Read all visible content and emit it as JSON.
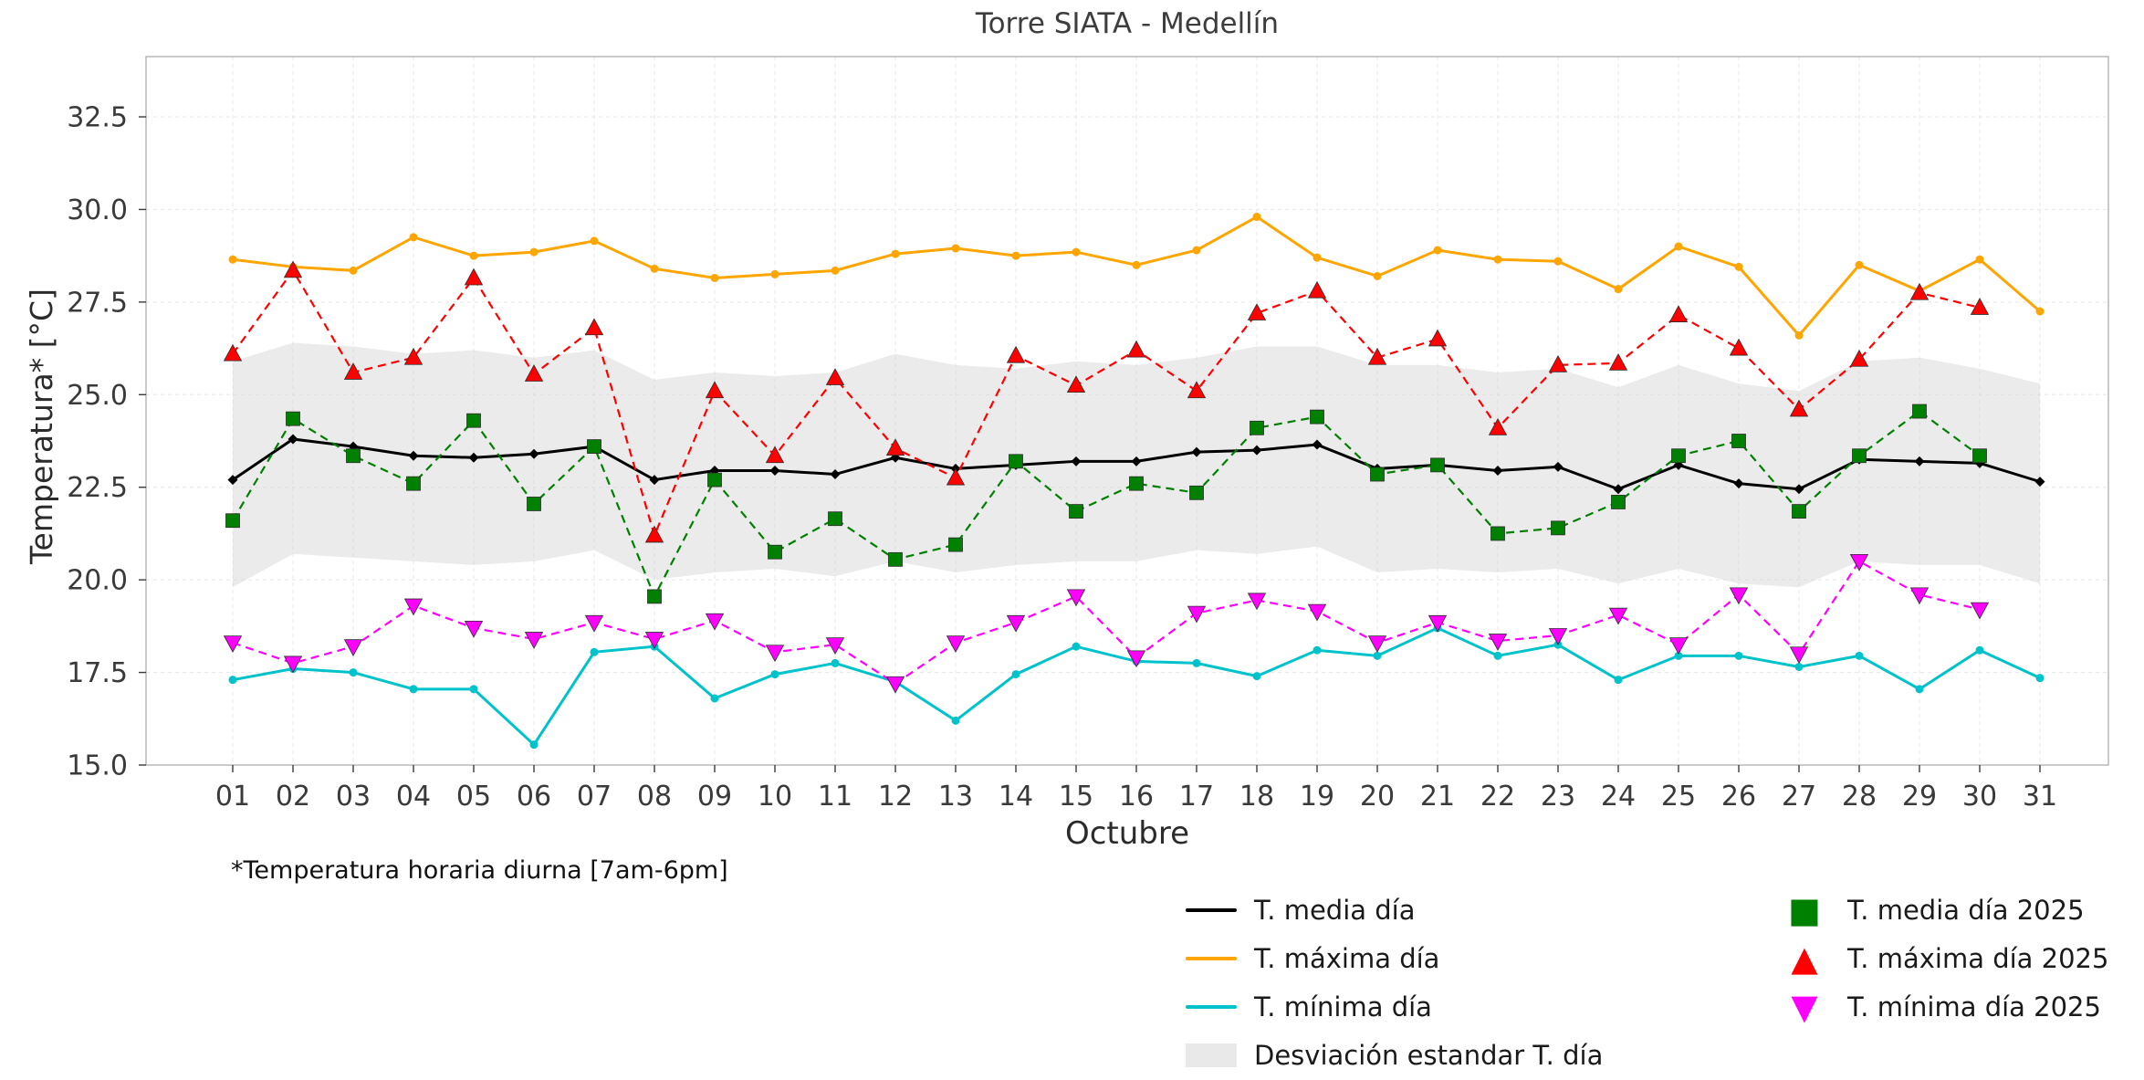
{
  "figure": {
    "footnote": "*Temperatura horaria diurna [7am-6pm]"
  },
  "chart_data": {
    "type": "line",
    "title": "Torre SIATA - Medellín",
    "xlabel": "Octubre",
    "ylabel": "Temperatura* [°C]",
    "grid": true,
    "legend_position": "below-right, two columns",
    "ylim": [
      15.0,
      34.1
    ],
    "y_ticks": [
      15.0,
      17.5,
      20.0,
      22.5,
      25.0,
      27.5,
      30.0,
      32.5
    ],
    "x_tick_labels": [
      "01",
      "02",
      "03",
      "04",
      "05",
      "06",
      "07",
      "08",
      "09",
      "10",
      "11",
      "12",
      "13",
      "14",
      "15",
      "16",
      "17",
      "18",
      "19",
      "20",
      "21",
      "22",
      "23",
      "24",
      "25",
      "26",
      "27",
      "28",
      "29",
      "30",
      "31"
    ],
    "band": {
      "name": "Desviación estandar T. día",
      "color": "#d3d3d3",
      "upper": [
        25.9,
        26.4,
        26.3,
        26.1,
        26.2,
        26.0,
        26.2,
        25.4,
        25.6,
        25.5,
        25.6,
        26.1,
        25.8,
        25.7,
        25.9,
        25.8,
        26.0,
        26.3,
        26.3,
        25.8,
        25.8,
        25.6,
        25.7,
        25.2,
        25.8,
        25.3,
        25.1,
        25.9,
        26.0,
        25.7,
        25.3
      ],
      "lower": [
        19.8,
        20.7,
        20.6,
        20.5,
        20.4,
        20.5,
        20.8,
        20.0,
        20.2,
        20.3,
        20.1,
        20.5,
        20.2,
        20.4,
        20.5,
        20.5,
        20.8,
        20.7,
        20.9,
        20.2,
        20.3,
        20.2,
        20.3,
        19.9,
        20.3,
        19.9,
        19.8,
        20.5,
        20.4,
        20.4,
        19.9
      ]
    },
    "series": [
      {
        "name": "T. media día",
        "color": "#000000",
        "linestyle": "solid",
        "marker": "diamond",
        "values": [
          22.7,
          23.8,
          23.6,
          23.35,
          23.3,
          23.4,
          23.6,
          22.7,
          22.95,
          22.95,
          22.85,
          23.3,
          23.0,
          23.1,
          23.2,
          23.2,
          23.45,
          23.5,
          23.65,
          23.0,
          23.1,
          22.95,
          23.05,
          22.45,
          23.1,
          22.6,
          22.45,
          23.25,
          23.2,
          23.15,
          22.65
        ]
      },
      {
        "name": "T. máxima día",
        "color": "#ffa500",
        "linestyle": "solid",
        "marker": "circle",
        "values": [
          28.65,
          28.45,
          28.35,
          29.25,
          28.75,
          28.85,
          29.15,
          28.4,
          28.15,
          28.25,
          28.35,
          28.8,
          28.95,
          28.75,
          28.85,
          28.5,
          28.9,
          29.8,
          28.7,
          28.2,
          28.9,
          28.65,
          28.6,
          27.85,
          29.0,
          28.45,
          26.6,
          28.5,
          27.8,
          28.65,
          27.25
        ]
      },
      {
        "name": "T. mínima día",
        "color": "#00c2cb",
        "linestyle": "solid",
        "marker": "circle",
        "values": [
          17.3,
          17.6,
          17.5,
          17.05,
          17.05,
          15.55,
          18.05,
          18.2,
          16.8,
          17.45,
          17.75,
          17.25,
          16.2,
          17.45,
          18.2,
          17.8,
          17.75,
          17.4,
          18.1,
          17.95,
          18.7,
          17.95,
          18.25,
          17.3,
          17.95,
          17.95,
          17.65,
          17.95,
          17.05,
          18.1,
          17.35
        ]
      },
      {
        "name": "T. media día 2025",
        "color": "#008000",
        "linestyle": "dashed",
        "marker": "square",
        "values": [
          21.6,
          24.35,
          23.35,
          22.6,
          24.3,
          22.05,
          23.6,
          19.55,
          22.7,
          20.75,
          21.65,
          20.55,
          20.95,
          23.2,
          21.85,
          22.6,
          22.35,
          24.1,
          24.4,
          22.85,
          23.1,
          21.25,
          21.4,
          22.1,
          23.35,
          23.75,
          21.85,
          23.35,
          24.55,
          23.35
        ]
      },
      {
        "name": "T. máxima día 2025",
        "color": "#ff0000",
        "linestyle": "dashed",
        "marker": "triangle-up",
        "values": [
          26.1,
          28.35,
          25.6,
          26.0,
          28.15,
          25.55,
          26.8,
          21.2,
          25.1,
          23.35,
          25.45,
          23.55,
          22.75,
          26.05,
          25.25,
          26.2,
          25.1,
          27.2,
          27.8,
          26.0,
          26.5,
          24.1,
          25.8,
          25.85,
          27.15,
          26.25,
          24.6,
          25.95,
          27.75,
          27.35
        ]
      },
      {
        "name": "T. mínima día 2025",
        "color": "#ff00ff",
        "linestyle": "dashed",
        "marker": "triangle-down",
        "values": [
          18.3,
          17.75,
          18.2,
          19.3,
          18.7,
          18.4,
          18.85,
          18.4,
          18.9,
          18.05,
          18.25,
          17.2,
          18.3,
          18.85,
          19.55,
          17.9,
          19.1,
          19.45,
          19.15,
          18.3,
          18.85,
          18.35,
          18.5,
          19.05,
          18.25,
          19.6,
          18.0,
          20.5,
          19.6,
          19.2
        ]
      }
    ]
  },
  "legend": {
    "left": [
      {
        "label": "T. media día"
      },
      {
        "label": "T. máxima día"
      },
      {
        "label": "T. mínima día"
      },
      {
        "label": "Desviación estandar T. día"
      }
    ],
    "right": [
      {
        "label": "T. media día 2025",
        "glyph": "■"
      },
      {
        "label": "T. máxima día 2025",
        "glyph": "▲"
      },
      {
        "label": "T. mínima día 2025",
        "glyph": "▼"
      }
    ]
  }
}
